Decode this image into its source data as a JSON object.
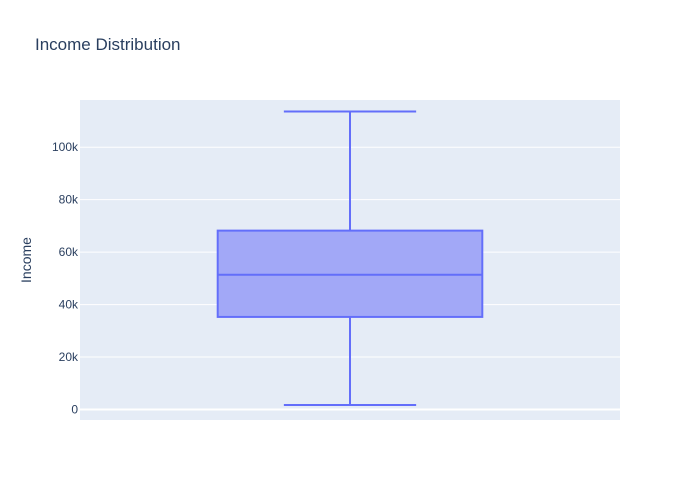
{
  "chart_data": {
    "type": "box",
    "title": "Income Distribution",
    "xlabel": "",
    "ylabel": "Income",
    "ylim": [
      -4000,
      118000
    ],
    "yticks": [
      {
        "value": 0,
        "label": "0"
      },
      {
        "value": 20000,
        "label": "20k"
      },
      {
        "value": 40000,
        "label": "40k"
      },
      {
        "value": 60000,
        "label": "60k"
      },
      {
        "value": 80000,
        "label": "80k"
      },
      {
        "value": 100000,
        "label": "100k"
      }
    ],
    "grid": true,
    "series": [
      {
        "min": 1700,
        "q1": 35300,
        "median": 51400,
        "q3": 68200,
        "max": 113600,
        "color": "#636efa",
        "fill": "#a2a8f7"
      }
    ]
  }
}
